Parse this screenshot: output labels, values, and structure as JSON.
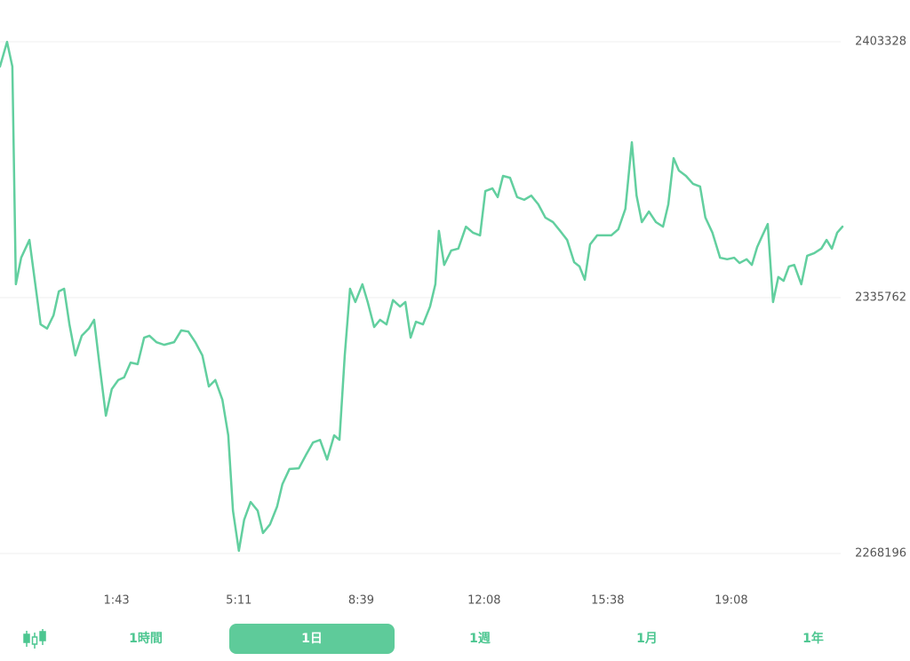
{
  "chart_data": {
    "type": "line",
    "x": [
      -95,
      -83,
      -74,
      -68,
      -59,
      -45,
      -35,
      -26,
      -15,
      -4,
      5,
      14,
      23,
      33,
      44,
      56,
      65,
      74,
      85,
      95,
      106,
      116,
      127,
      139,
      150,
      159,
      171,
      184,
      201,
      213,
      225,
      237,
      249,
      260,
      271,
      283,
      293,
      301,
      311,
      320,
      331,
      343,
      352,
      364,
      376,
      385,
      397,
      413,
      425,
      437,
      449,
      461,
      473,
      482,
      491,
      500,
      509,
      521,
      530,
      541,
      551,
      562,
      573,
      585,
      594,
      603,
      612,
      624,
      636,
      645,
      651,
      660,
      672,
      684,
      697,
      709,
      721,
      730,
      742,
      751,
      760,
      772,
      784,
      796,
      808,
      820,
      832,
      845,
      857,
      869,
      881,
      890,
      899,
      908,
      920,
      932,
      944,
      956,
      968,
      979,
      987,
      996,
      1008,
      1020,
      1032,
      1041,
      1050,
      1059,
      1071,
      1083,
      1095,
      1104,
      1116,
      1129,
      1141,
      1153,
      1162,
      1174,
      1183,
      1192,
      1201,
      1210,
      1219,
      1228,
      1237,
      1246,
      1255,
      1267,
      1277,
      1289,
      1301,
      1310,
      1319,
      1328,
      1337
    ],
    "values": [
      2396800,
      2403300,
      2396800,
      2339300,
      2346300,
      2351000,
      2339300,
      2328700,
      2327600,
      2331100,
      2337400,
      2338100,
      2328700,
      2320500,
      2325700,
      2327600,
      2329900,
      2318200,
      2304600,
      2311600,
      2314000,
      2314700,
      2318600,
      2318200,
      2325200,
      2325700,
      2324000,
      2323300,
      2324000,
      2327100,
      2326800,
      2324000,
      2320500,
      2312300,
      2314000,
      2308800,
      2299400,
      2279500,
      2268900,
      2277100,
      2281800,
      2279500,
      2273600,
      2275900,
      2280600,
      2286500,
      2290500,
      2290700,
      2294200,
      2297500,
      2298200,
      2293000,
      2299400,
      2298200,
      2320500,
      2338100,
      2334600,
      2339300,
      2334600,
      2328000,
      2329900,
      2328700,
      2335100,
      2333400,
      2334600,
      2325200,
      2329400,
      2328700,
      2333400,
      2339300,
      2353400,
      2344400,
      2348200,
      2348700,
      2354500,
      2352900,
      2352200,
      2363900,
      2364600,
      2362300,
      2367900,
      2367400,
      2362300,
      2361600,
      2362700,
      2360400,
      2356900,
      2355700,
      2353400,
      2351000,
      2345100,
      2344000,
      2340500,
      2349800,
      2352200,
      2352200,
      2352200,
      2353800,
      2359200,
      2376800,
      2362700,
      2355700,
      2358500,
      2355700,
      2354500,
      2360400,
      2372600,
      2369300,
      2367900,
      2365800,
      2365100,
      2356900,
      2352900,
      2346300,
      2345900,
      2346300,
      2344900,
      2345900,
      2344400,
      2349100,
      2352200,
      2355200,
      2334600,
      2341200,
      2340200,
      2344000,
      2344400,
      2339300,
      2346800,
      2347500,
      2348700,
      2351000,
      2348700,
      2352900,
      2354500
    ],
    "color": "#62cf9f",
    "xlim": [
      -95,
      1337
    ],
    "xticks": [
      {
        "value": 103,
        "label": "1:43"
      },
      {
        "value": 311,
        "label": "5:11"
      },
      {
        "value": 519,
        "label": "8:39"
      },
      {
        "value": 728,
        "label": "12:08"
      },
      {
        "value": 938,
        "label": "15:38"
      },
      {
        "value": 1148,
        "label": "19:08"
      }
    ],
    "ylim": [
      2268196,
      2403328
    ],
    "yticks": [
      2268196,
      2335762,
      2403328
    ],
    "grid": true
  },
  "tabs": {
    "items": [
      "1時間",
      "1日",
      "1週",
      "1月",
      "1年"
    ],
    "active": 1
  }
}
